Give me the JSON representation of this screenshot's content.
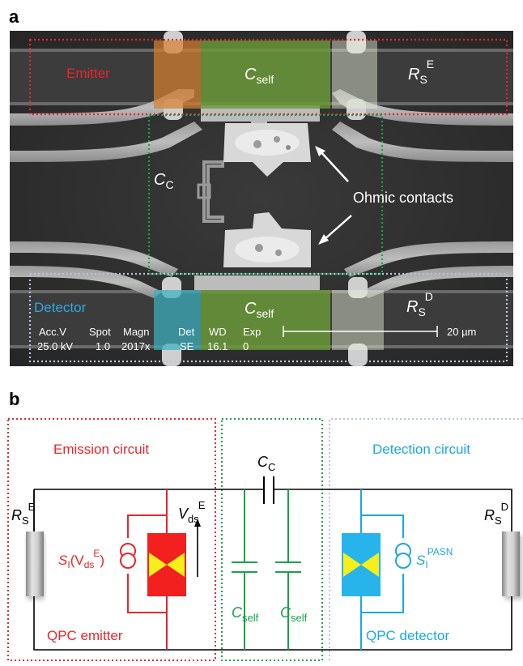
{
  "panel_a": {
    "letter": "a",
    "emitter_label": "Emitter",
    "detector_label": "Detector",
    "c_self_top": {
      "base": "C",
      "sub": "self"
    },
    "c_self_bottom": {
      "base": "C",
      "sub": "self"
    },
    "c_c": {
      "base": "C",
      "sub": "C"
    },
    "rs_e": {
      "base": "R",
      "sub": "S",
      "sup": "E"
    },
    "rs_d": {
      "base": "R",
      "sub": "S",
      "sup": "D"
    },
    "ohmic_label": "Ohmic contacts",
    "info_bar": {
      "acc_label": "Acc.V",
      "acc_value": "25.0 kV",
      "spot_label": "Spot",
      "spot_value": "1.0",
      "magn_label": "Magn",
      "magn_value": "2017x",
      "det_label": "Det",
      "det_value": "SE",
      "wd_label": "WD",
      "wd_value": "16.1",
      "exp_label": "Exp",
      "exp_value": "0",
      "scale_label": "20 µm"
    },
    "colors": {
      "emitter_box": "#e8252a",
      "detector_box": "#b9c4dc",
      "coupling_box": "#1aa24a",
      "orange_tint": "#d6802f",
      "green_tint": "#6a9a36",
      "cyan_tint": "#3ab0c0",
      "white_tint": "#e8f0d8",
      "emitter_text": "#e8252a",
      "detector_text": "#34a6e0"
    }
  },
  "panel_b": {
    "letter": "b",
    "emission_title": "Emission circuit",
    "detection_title": "Detection circuit",
    "qpc_emitter": "QPC emitter",
    "qpc_detector": "QPC detector",
    "c_c": {
      "base": "C",
      "sub": "C"
    },
    "c_self_left": {
      "base": "C",
      "sub": "self"
    },
    "c_self_right": {
      "base": "C",
      "sub": "self"
    },
    "rs_e": {
      "base": "R",
      "sub": "S",
      "sup": "E"
    },
    "rs_d": {
      "base": "R",
      "sub": "S",
      "sup": "D"
    },
    "v_ds": {
      "base": "V",
      "sub": "ds",
      "sup": "E"
    },
    "s_i_emitter": {
      "base": "S",
      "sub": "I",
      "tail": "(V",
      "tail_sub": "ds",
      "tail_sup": "E",
      "end": ")"
    },
    "s_i_detector": {
      "base": "S",
      "sub": "I",
      "sup": "PASN"
    },
    "colors": {
      "emission": "#e8252a",
      "detection": "#1aa8e0",
      "coupling": "#1aa24a",
      "wire": "#000000",
      "qpc_red": "#f2201e",
      "qpc_blue": "#27b4ea",
      "qpc_yellow": "#f7ef1a",
      "detection_box": "#b9c4dc"
    }
  }
}
